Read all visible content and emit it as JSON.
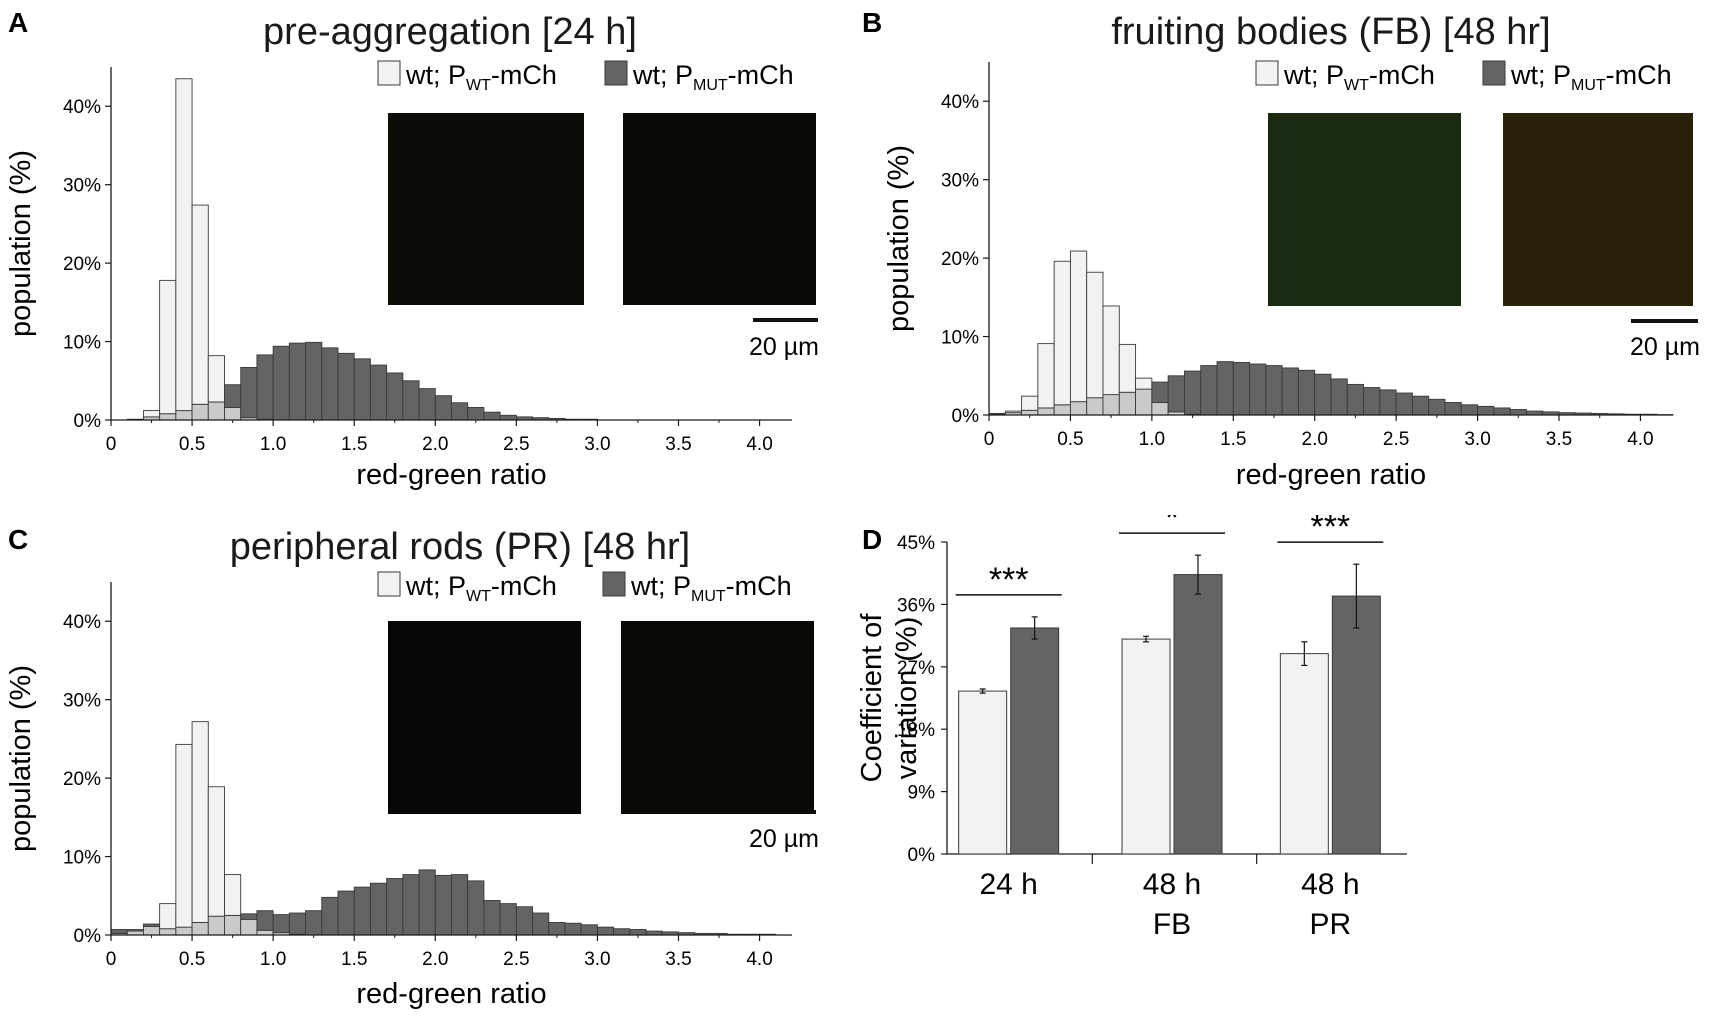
{
  "colors": {
    "wt_fill": "#f1f2f4",
    "mut_fill": "#646464",
    "overlap_fill": "#c9cacc",
    "edge": "#3a3a3a",
    "axis": "#1a1a1a"
  },
  "legend_common": {
    "wt_label_prefix": "wt; P",
    "wt_label_sub": "WT",
    "mut_label_prefix": "wt; P",
    "mut_label_sub": "MUT",
    "label_suffix": "-mCh",
    "scale_bar_label": "20 µm"
  },
  "chart_data": [
    {
      "panel": "A",
      "type": "bar",
      "title": "pre-aggregation [24 h]",
      "xlabel": "red-green ratio",
      "ylabel": "population (%)",
      "xlim": [
        0,
        4.2
      ],
      "ylim": [
        0,
        45
      ],
      "xticks": [
        0,
        0.5,
        1.0,
        1.5,
        2.0,
        2.5,
        3.0,
        3.5,
        4.0
      ],
      "xtick_labels": [
        "0",
        "0.5",
        "1.0",
        "1.5",
        "2.0",
        "2.5",
        "3.0",
        "3.5",
        "4.0"
      ],
      "yticks": [
        0,
        10,
        20,
        30,
        40
      ],
      "ytick_labels": [
        "0%",
        "10%",
        "20%",
        "30%",
        "40%"
      ],
      "bin_width": 0.1,
      "bin_start": 0.0,
      "series": [
        {
          "name": "wt; PWT-mCh",
          "values": [
            0,
            0.1,
            1.2,
            17.8,
            43.5,
            27.4,
            8.2,
            1.6,
            0.3,
            0.1
          ]
        },
        {
          "name": "wt; PMUT-mCh",
          "values": [
            0,
            0.1,
            0.4,
            0.8,
            1.2,
            2.0,
            2.3,
            4.5,
            6.7,
            8.3,
            9.4,
            9.8,
            9.9,
            9.2,
            8.5,
            7.8,
            7.0,
            6.0,
            5.0,
            4.0,
            3.1,
            2.2,
            1.6,
            1.0,
            0.6,
            0.4,
            0.3,
            0.2,
            0.1,
            0.1
          ]
        }
      ]
    },
    {
      "panel": "B",
      "type": "bar",
      "title": "fruiting bodies (FB) [48 hr]",
      "xlabel": "red-green ratio",
      "ylabel": "population (%)",
      "xlim": [
        0,
        4.2
      ],
      "ylim": [
        0,
        45
      ],
      "xticks": [
        0,
        0.5,
        1.0,
        1.5,
        2.0,
        2.5,
        3.0,
        3.5,
        4.0
      ],
      "xtick_labels": [
        "0",
        "0.5",
        "1.0",
        "1.5",
        "2.0",
        "2.5",
        "3.0",
        "3.5",
        "4.0"
      ],
      "yticks": [
        0,
        10,
        20,
        30,
        40
      ],
      "ytick_labels": [
        "0%",
        "10%",
        "20%",
        "30%",
        "40%"
      ],
      "bin_width": 0.1,
      "bin_start": 0.0,
      "series": [
        {
          "name": "wt; PWT-mCh",
          "values": [
            0.1,
            0.5,
            2.4,
            9.1,
            19.6,
            20.9,
            18.2,
            13.9,
            9.0,
            4.7,
            1.6,
            0.4,
            0.1
          ]
        },
        {
          "name": "wt; PMUT-mCh",
          "values": [
            0.2,
            0.3,
            0.6,
            0.9,
            1.3,
            1.7,
            2.2,
            2.6,
            2.9,
            3.3,
            4.2,
            5.0,
            5.6,
            6.3,
            6.8,
            6.7,
            6.5,
            6.3,
            6.0,
            5.7,
            5.2,
            4.6,
            3.9,
            3.5,
            3.2,
            2.8,
            2.4,
            2.0,
            1.6,
            1.3,
            1.1,
            0.9,
            0.7,
            0.5,
            0.4,
            0.3,
            0.25,
            0.2,
            0.15,
            0.1,
            0.1,
            0.05
          ]
        }
      ]
    },
    {
      "panel": "C",
      "type": "bar",
      "title": "peripheral rods (PR) [48 hr]",
      "xlabel": "red-green ratio",
      "ylabel": "population (%)",
      "xlim": [
        0,
        4.2
      ],
      "ylim": [
        0,
        45
      ],
      "xticks": [
        0,
        0.5,
        1.0,
        1.5,
        2.0,
        2.5,
        3.0,
        3.5,
        4.0
      ],
      "xtick_labels": [
        "0",
        "0.5",
        "1.0",
        "1.5",
        "2.0",
        "2.5",
        "3.0",
        "3.5",
        "4.0"
      ],
      "yticks": [
        0,
        10,
        20,
        30,
        40
      ],
      "ytick_labels": [
        "0%",
        "10%",
        "20%",
        "30%",
        "40%"
      ],
      "bin_width": 0.1,
      "bin_start": 0.0,
      "series": [
        {
          "name": "wt; PWT-mCh",
          "values": [
            0.2,
            0.5,
            1.1,
            4.0,
            24.3,
            27.2,
            18.9,
            7.7,
            2.0,
            0.6,
            0.3,
            0.1
          ]
        },
        {
          "name": "wt; PMUT-mCh",
          "values": [
            0.7,
            0.7,
            1.4,
            0.8,
            1.0,
            1.6,
            2.4,
            2.5,
            2.7,
            3.1,
            2.6,
            2.8,
            3.1,
            4.8,
            5.6,
            6.1,
            6.6,
            7.2,
            7.7,
            8.3,
            7.6,
            7.7,
            6.9,
            4.4,
            4.0,
            3.6,
            2.8,
            1.6,
            1.5,
            1.3,
            1.0,
            0.8,
            0.7,
            0.5,
            0.4,
            0.3,
            0.2,
            0.2,
            0.1,
            0.1,
            0.1
          ]
        }
      ]
    },
    {
      "panel": "D",
      "type": "bar",
      "ylabel_line1": "Coefficient of",
      "ylabel_line2": "variation (%)",
      "ylim": [
        0,
        45
      ],
      "yticks": [
        0,
        9,
        18,
        27,
        36,
        45
      ],
      "ytick_labels": [
        "0%",
        "9%",
        "18%",
        "27%",
        "36%",
        "45%"
      ],
      "categories": [
        "24 h",
        "48 h",
        "48 h"
      ],
      "categories_line2": [
        "",
        "FB",
        "PR"
      ],
      "series": [
        {
          "name": "wt; PWT-mCh",
          "values": [
            23.5,
            31.0,
            28.9
          ],
          "errors": [
            0.3,
            0.4,
            1.7
          ]
        },
        {
          "name": "wt; PMUT-mCh",
          "values": [
            32.6,
            40.3,
            37.2
          ],
          "errors": [
            1.6,
            2.8,
            4.6
          ]
        }
      ],
      "significance": [
        "***",
        "*",
        "***"
      ]
    }
  ]
}
